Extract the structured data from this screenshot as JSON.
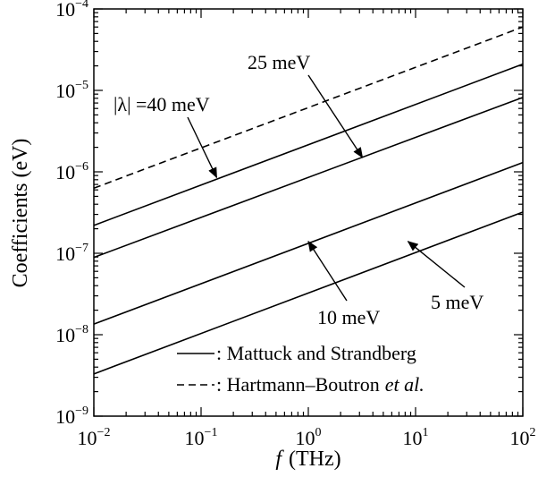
{
  "chart_data": {
    "type": "line",
    "xlabel_var": "f",
    "xlabel_unit": "(THz)",
    "ylabel": "Coefficients (eV)",
    "xscale": "log",
    "yscale": "log",
    "xlim": [
      0.01,
      100
    ],
    "ylim": [
      1e-09,
      0.0001
    ],
    "x_ticks": [
      {
        "base": "10",
        "exp": "−2"
      },
      {
        "base": "10",
        "exp": "−1"
      },
      {
        "base": "10",
        "exp": "0"
      },
      {
        "base": "10",
        "exp": "1"
      },
      {
        "base": "10",
        "exp": "2"
      }
    ],
    "y_ticks": [
      {
        "base": "10",
        "exp": "−9"
      },
      {
        "base": "10",
        "exp": "−8"
      },
      {
        "base": "10",
        "exp": "−7"
      },
      {
        "base": "10",
        "exp": "−6"
      },
      {
        "base": "10",
        "exp": "−5"
      },
      {
        "base": "10",
        "exp": "−4"
      }
    ],
    "series": [
      {
        "style": "dashed",
        "x": [
          0.01,
          100
        ],
        "y": [
          6.3e-07,
          6e-05
        ]
      },
      {
        "style": "solid",
        "x": [
          0.01,
          100
        ],
        "y": [
          2.2e-07,
          2.1e-05
        ]
      },
      {
        "style": "solid",
        "x": [
          0.01,
          100
        ],
        "y": [
          8.9e-08,
          8.2e-06
        ]
      },
      {
        "style": "solid",
        "x": [
          0.01,
          100
        ],
        "y": [
          1.35e-08,
          1.3e-06
        ]
      },
      {
        "style": "solid",
        "x": [
          0.01,
          100
        ],
        "y": [
          3.3e-09,
          3.2e-07
        ]
      }
    ],
    "legend": {
      "placement": "bottom-right",
      "entries": [
        {
          "style": "solid",
          "label": ": Mattuck and Strandberg"
        },
        {
          "style": "dashed",
          "label": ": Hartmann–Boutron",
          "label_italic": "et al."
        }
      ]
    },
    "annotations": [
      {
        "id": "lambda40",
        "text": "|λ|  =40  meV",
        "arrow_to": {
          "x": 0.14,
          "y": 8.5e-07
        }
      },
      {
        "id": "lambda25",
        "text": "25  meV",
        "arrow_to": {
          "x": 3.2,
          "y": 1.5e-06
        }
      },
      {
        "id": "lambda10",
        "text": "10  meV",
        "arrow_to": {
          "x": 1.0,
          "y": 1.4e-07
        }
      },
      {
        "id": "lambda5",
        "text": "5  meV",
        "arrow_to": {
          "x": 8.5,
          "y": 1.4e-07
        }
      }
    ]
  }
}
